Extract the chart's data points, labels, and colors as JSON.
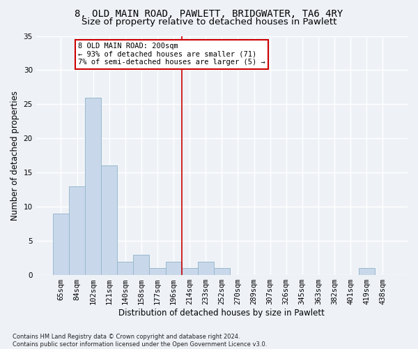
{
  "title_line1": "8, OLD MAIN ROAD, PAWLETT, BRIDGWATER, TA6 4RY",
  "title_line2": "Size of property relative to detached houses in Pawlett",
  "xlabel": "Distribution of detached houses by size in Pawlett",
  "ylabel": "Number of detached properties",
  "footnote": "Contains HM Land Registry data © Crown copyright and database right 2024.\nContains public sector information licensed under the Open Government Licence v3.0.",
  "categories": [
    "65sqm",
    "84sqm",
    "102sqm",
    "121sqm",
    "140sqm",
    "158sqm",
    "177sqm",
    "196sqm",
    "214sqm",
    "233sqm",
    "252sqm",
    "270sqm",
    "289sqm",
    "307sqm",
    "326sqm",
    "345sqm",
    "363sqm",
    "382sqm",
    "401sqm",
    "419sqm",
    "438sqm"
  ],
  "values": [
    9,
    13,
    26,
    16,
    2,
    3,
    1,
    2,
    1,
    2,
    1,
    0,
    0,
    0,
    0,
    0,
    0,
    0,
    0,
    1,
    0
  ],
  "bar_color": "#c8d8ea",
  "bar_edge_color": "#9ab8cc",
  "vline_x_idx": 7.5,
  "vline_color": "#cc0000",
  "annotation_text": "8 OLD MAIN ROAD: 200sqm\n← 93% of detached houses are smaller (71)\n7% of semi-detached houses are larger (5) →",
  "annotation_box_edgecolor": "#cc0000",
  "ylim": [
    0,
    35
  ],
  "yticks": [
    0,
    5,
    10,
    15,
    20,
    25,
    30,
    35
  ],
  "background_color": "#eef2f7",
  "plot_bg_color": "#eef2f7",
  "grid_color": "#ffffff",
  "title_fontsize": 10,
  "subtitle_fontsize": 9.5,
  "axis_label_fontsize": 8.5,
  "tick_fontsize": 7.5,
  "footnote_fontsize": 6,
  "annotation_fontsize": 7.5
}
